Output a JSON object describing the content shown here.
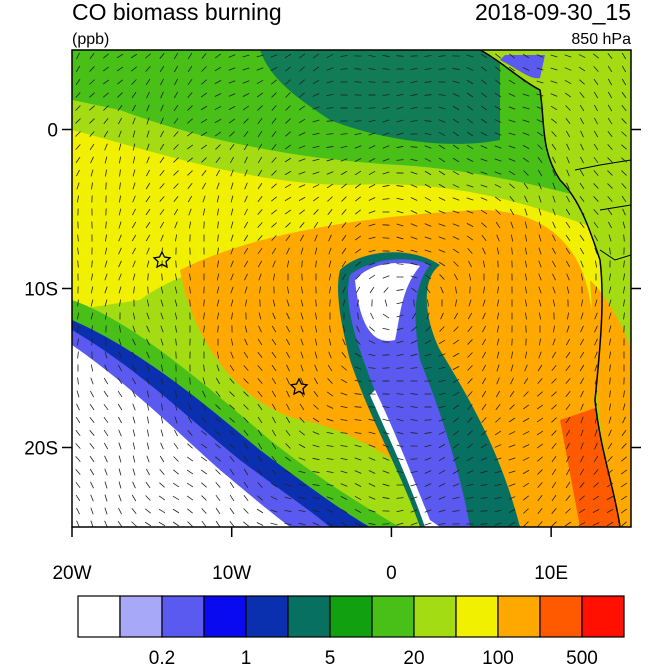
{
  "map": {
    "title": "CO biomass burning",
    "units": "(ppb)",
    "date": "2018-09-30_15",
    "level": "850 hPa",
    "lonlim": [
      -20,
      15
    ],
    "latlim": [
      -25,
      5
    ],
    "lat_ticks": [
      0,
      {
        "value": -10,
        "label": "10S"
      },
      {
        "value": -20,
        "label": "20S"
      }
    ],
    "lon_ticks": [
      {
        "value": -20,
        "label": "20W"
      },
      {
        "value": -10,
        "label": "10W"
      },
      0,
      {
        "value": 10,
        "label": "10E"
      }
    ],
    "colorbar": {
      "colors": [
        "#ffffff",
        "#a8a8f8",
        "#5a5af0",
        "#0a0af0",
        "#0a30b0",
        "#087060",
        "#10a010",
        "#48c018",
        "#a4dc14",
        "#f0f000",
        "#ffa800",
        "#ff5a00",
        "#ff1000"
      ],
      "labels": [
        "0.2",
        "1",
        "5",
        "20",
        "100",
        "500"
      ]
    }
  }
}
